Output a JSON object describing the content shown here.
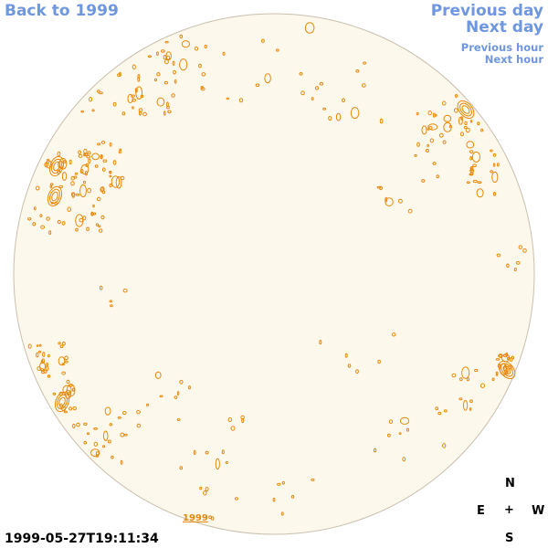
{
  "nav": {
    "back": "Back to 1999",
    "previous_day": "Previous day",
    "next_day": "Next day",
    "previous_hour": "Previous hour",
    "next_hour": "Next hour"
  },
  "timestamp": "1999-05-27T19:11:34",
  "compass": {
    "north": "N",
    "east": "E",
    "center": "+",
    "west": "W",
    "south": "S"
  },
  "disk_label": "1999",
  "colors": {
    "disk_fill": "#fdf8ec",
    "disk_border": "#c9bfae",
    "contour": "#e8890a",
    "link": "#6f97e0"
  }
}
